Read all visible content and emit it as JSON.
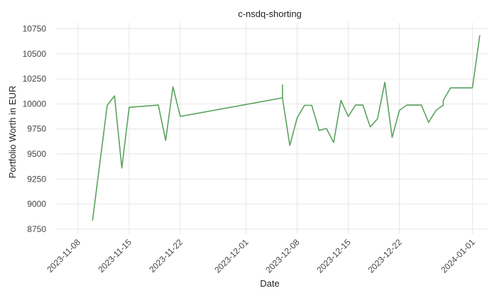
{
  "chart_data": {
    "type": "line",
    "title": "c-nsdq-shorting",
    "xlabel": "Date",
    "ylabel": "Portfolio Worth in EUR",
    "x_axis": {
      "type": "date",
      "range": [
        "2023-11-05",
        "2024-01-03"
      ],
      "ticks": [
        "2023-11-08",
        "2023-11-15",
        "2023-11-22",
        "2023-12-01",
        "2023-12-08",
        "2023-12-15",
        "2023-12-22",
        "2024-01-01"
      ]
    },
    "y_axis": {
      "range": [
        8700,
        10810
      ],
      "ticks": [
        8750,
        9000,
        9250,
        9500,
        9750,
        10000,
        10250,
        10500,
        10750
      ]
    },
    "grid": true,
    "series": [
      {
        "color": "#5aa35e",
        "points": [
          [
            "2023-11-10",
            8840
          ],
          [
            "2023-11-12",
            9985
          ],
          [
            "2023-11-13",
            10080
          ],
          [
            "2023-11-14",
            9360
          ],
          [
            "2023-11-15",
            9965
          ],
          [
            "2023-11-19",
            9988
          ],
          [
            "2023-11-20",
            9635
          ],
          [
            "2023-11-21",
            10170
          ],
          [
            "2023-11-22",
            9875
          ],
          [
            "2023-12-06",
            10060
          ],
          [
            "2023-12-06",
            10190
          ],
          [
            "2023-12-06",
            10055
          ],
          [
            "2023-12-07",
            9585
          ],
          [
            "2023-12-08",
            9860
          ],
          [
            "2023-12-09",
            9985
          ],
          [
            "2023-12-10",
            9985
          ],
          [
            "2023-12-11",
            9735
          ],
          [
            "2023-12-12",
            9755
          ],
          [
            "2023-12-13",
            9615
          ],
          [
            "2023-12-14",
            10035
          ],
          [
            "2023-12-15",
            9875
          ],
          [
            "2023-12-16",
            9988
          ],
          [
            "2023-12-17",
            9988
          ],
          [
            "2023-12-18",
            9770
          ],
          [
            "2023-12-19",
            9850
          ],
          [
            "2023-12-20",
            10215
          ],
          [
            "2023-12-21",
            9665
          ],
          [
            "2023-12-22",
            9935
          ],
          [
            "2023-12-23",
            9988
          ],
          [
            "2023-12-24",
            9988
          ],
          [
            "2023-12-25",
            9988
          ],
          [
            "2023-12-26",
            9815
          ],
          [
            "2023-12-27",
            9935
          ],
          [
            "2023-12-28",
            9988
          ],
          [
            "2023-12-28",
            10035
          ],
          [
            "2023-12-29",
            10160
          ],
          [
            "2023-12-30",
            10160
          ],
          [
            "2024-01-01",
            10160
          ],
          [
            "2024-01-02",
            10680
          ]
        ]
      }
    ]
  }
}
